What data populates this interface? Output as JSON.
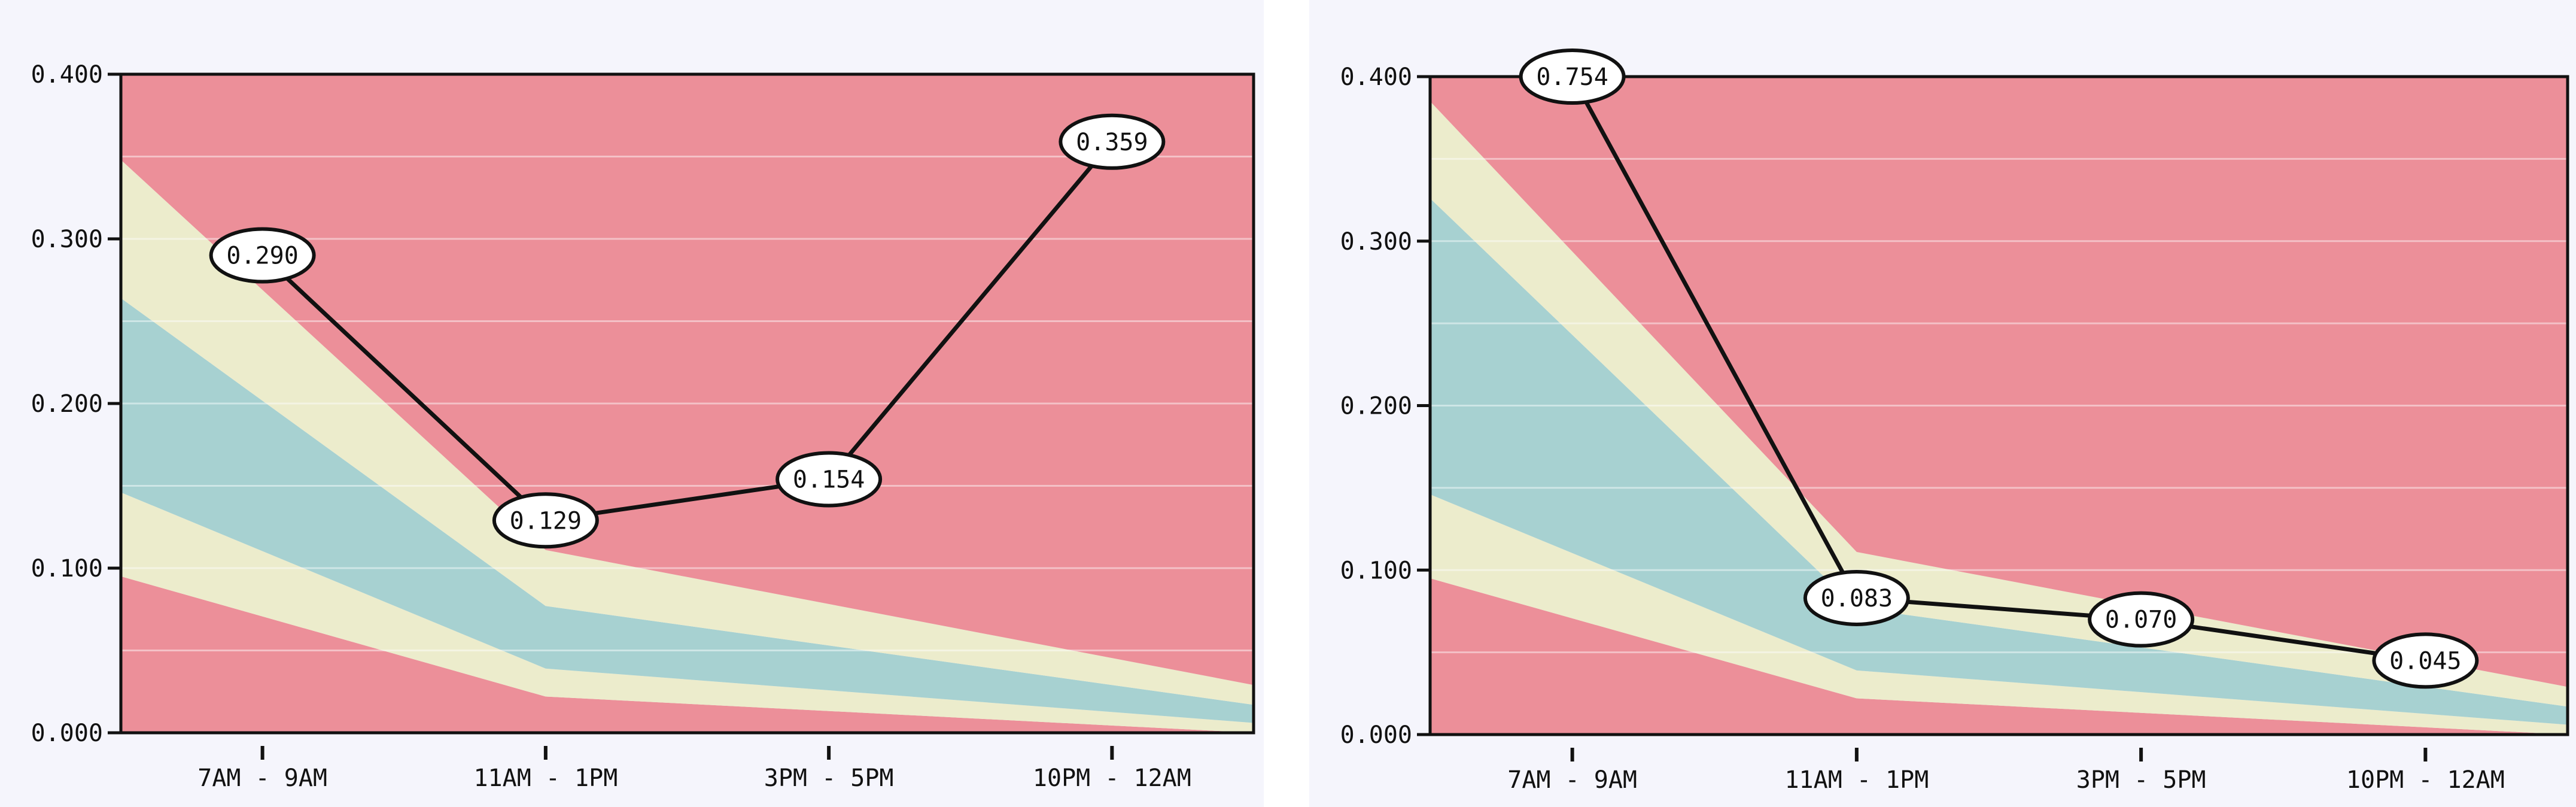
{
  "chart_data": [
    {
      "type": "area",
      "title": "",
      "xlabel": "",
      "ylabel": "",
      "categories": [
        "7AM - 9AM",
        "11AM - 1PM",
        "3PM - 5PM",
        "10PM - 12AM"
      ],
      "ylim": [
        0,
        0.4
      ],
      "y_ticks": [
        "0.000",
        "0.100",
        "0.200",
        "0.300",
        "0.400"
      ],
      "grid": true,
      "bands_x": [
        "7AM - 9AM",
        "11AM - 1PM",
        "10PM - 12AM"
      ],
      "bands": [
        {
          "lower": [
            0.0,
            0.0,
            0.0
          ],
          "upper": [
            0.095,
            0.022,
            0.0
          ],
          "color": "#ec8f99"
        },
        {
          "lower": [
            0.095,
            0.022,
            0.0
          ],
          "upper": [
            0.146,
            0.039,
            0.006
          ],
          "color": "#ececcc"
        },
        {
          "lower": [
            0.146,
            0.039,
            0.006
          ],
          "upper": [
            0.264,
            0.077,
            0.017
          ],
          "color": "#a7d1d1"
        },
        {
          "lower": [
            0.264,
            0.077,
            0.017
          ],
          "upper": [
            0.348,
            0.111,
            0.029
          ],
          "color": "#ececcc"
        },
        {
          "lower": [
            0.348,
            0.111,
            0.029
          ],
          "upper": [
            0.4,
            0.4,
            0.4
          ],
          "color": "#ec8f99"
        }
      ],
      "series": [
        {
          "values": [
            0.29,
            0.129,
            0.154,
            0.359
          ],
          "labels": [
            "0.290",
            "0.129",
            "0.154",
            "0.359"
          ],
          "color": "#111111"
        }
      ]
    },
    {
      "type": "area",
      "title": "",
      "xlabel": "",
      "ylabel": "",
      "categories": [
        "7AM - 9AM",
        "11AM - 1PM",
        "3PM - 5PM",
        "10PM - 12AM"
      ],
      "ylim": [
        0,
        0.4
      ],
      "y_ticks": [
        "0.000",
        "0.100",
        "0.200",
        "0.300",
        "0.400"
      ],
      "grid": true,
      "bands_x": [
        "7AM - 9AM",
        "11AM - 1PM",
        "10PM - 12AM"
      ],
      "bands": [
        {
          "lower": [
            0.0,
            0.0,
            0.0
          ],
          "upper": [
            0.095,
            0.022,
            0.0
          ],
          "color": "#ec8f99"
        },
        {
          "lower": [
            0.095,
            0.022,
            0.0
          ],
          "upper": [
            0.146,
            0.039,
            0.006
          ],
          "color": "#ececcc"
        },
        {
          "lower": [
            0.146,
            0.039,
            0.006
          ],
          "upper": [
            0.326,
            0.077,
            0.017
          ],
          "color": "#a7d1d1"
        },
        {
          "lower": [
            0.326,
            0.077,
            0.017
          ],
          "upper": [
            0.385,
            0.111,
            0.029
          ],
          "color": "#ececcc"
        },
        {
          "lower": [
            0.385,
            0.111,
            0.029
          ],
          "upper": [
            0.4,
            0.4,
            0.4
          ],
          "color": "#ec8f99"
        }
      ],
      "series": [
        {
          "values": [
            0.754,
            0.083,
            0.07,
            0.045
          ],
          "labels": [
            "0.754",
            "0.083",
            "0.070",
            "0.045"
          ],
          "color": "#111111"
        }
      ]
    }
  ]
}
